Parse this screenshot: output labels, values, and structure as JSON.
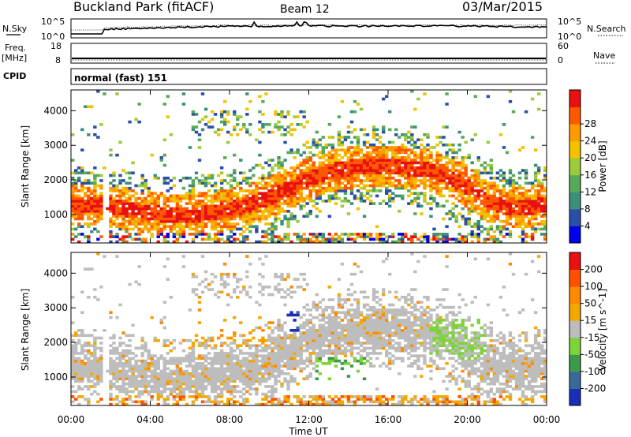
{
  "header": {
    "title": "Buckland Park (fitACF)",
    "beam": "Beam 12",
    "date": "03/Mar/2015"
  },
  "strip_panels": {
    "nsky": {
      "left_label": "N.Sky",
      "left_ticks": [
        "10^5",
        "10^0"
      ],
      "right_label": "N.Search",
      "right_ticks": [
        "10^5",
        "10^0"
      ]
    },
    "freq": {
      "left_label_top": "Freq.",
      "left_label_bottom": "[MHz]",
      "left_ticks": [
        "18",
        "8"
      ],
      "right_label": "Nave",
      "right_ticks": [
        "60",
        "0"
      ]
    },
    "cpid": {
      "label": "CPID",
      "value": "normal (fast) 151"
    }
  },
  "chart_data": [
    {
      "type": "heatmap",
      "title": "",
      "xlabel": "",
      "ylabel": "Slant Range [km]",
      "x_ticks": [
        "00:00",
        "04:00",
        "08:00",
        "12:00",
        "16:00",
        "20:00",
        "00:00"
      ],
      "x_range_hours": [
        0,
        24
      ],
      "y_ticks": [
        1000,
        2000,
        3000,
        4000
      ],
      "ylim": [
        180,
        4600
      ],
      "colorbar": {
        "label": "Power [dB]",
        "ticks": [
          "4",
          "8",
          "12",
          "16",
          "20",
          "24",
          "28"
        ],
        "colors": [
          "#0000ee",
          "#2a4fa8",
          "#3d8f7a",
          "#5aa95a",
          "#9ccc3a",
          "#f2c200",
          "#ff9b00",
          "#ff5a00",
          "#e81010"
        ]
      },
      "features": [
        {
          "name": "main-band",
          "hours": [
            0,
            1,
            2,
            3,
            4,
            5,
            6,
            7,
            8,
            9,
            10,
            11,
            12,
            13,
            14,
            15,
            16,
            17,
            18,
            19,
            20,
            21,
            22,
            23,
            24
          ],
          "range_km": [
            1300,
            1300,
            1250,
            1150,
            1050,
            1000,
            1000,
            1050,
            1150,
            1300,
            1500,
            1750,
            2050,
            2250,
            2350,
            2400,
            2400,
            2350,
            2300,
            2100,
            1800,
            1400,
            1200,
            1200,
            1300
          ],
          "level": 0.85
        }
      ]
    },
    {
      "type": "heatmap",
      "title": "",
      "xlabel": "Time UT",
      "ylabel": "Slant Range [km]",
      "x_ticks": [
        "00:00",
        "04:00",
        "08:00",
        "12:00",
        "16:00",
        "20:00",
        "00:00"
      ],
      "x_range_hours": [
        0,
        24
      ],
      "y_ticks": [
        1000,
        2000,
        3000,
        4000
      ],
      "ylim": [
        180,
        4600
      ],
      "colorbar": {
        "label": "Velocity [m s^-1]",
        "ticks": [
          "200",
          "100",
          "50",
          "15",
          "-15",
          "-50",
          "-100",
          "-200"
        ],
        "colors": [
          "#1a2fb8",
          "#3a6a9a",
          "#3d9a4a",
          "#7fd33a",
          "#bdbdbd",
          "#f2a800",
          "#ff8a00",
          "#ff5000",
          "#e81010"
        ]
      }
    }
  ]
}
